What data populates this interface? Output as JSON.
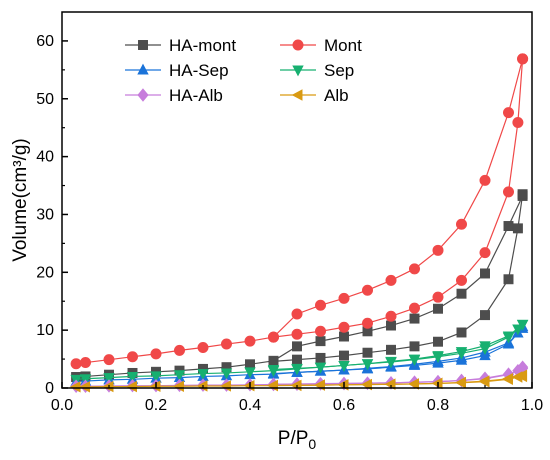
{
  "chart_data": {
    "type": "scatter",
    "xlim": [
      0,
      1.0
    ],
    "ylim": [
      0,
      65
    ],
    "x_ticks": [
      "0.0",
      "0.2",
      "0.4",
      "0.6",
      "0.8",
      "1.0"
    ],
    "y_ticks": [
      "0",
      "10",
      "20",
      "30",
      "40",
      "50",
      "60"
    ],
    "xlabel_main": "P/P",
    "xlabel_sub": "0",
    "ylabel": "Volume(cm³/g)",
    "legend_position": "top-left",
    "grid": false,
    "series": [
      {
        "name": "HA-mont",
        "color": "#4d4d4d",
        "marker": "square",
        "adsorption": [
          [
            0.03,
            1.9
          ],
          [
            0.05,
            2.0
          ],
          [
            0.1,
            2.3
          ],
          [
            0.15,
            2.6
          ],
          [
            0.2,
            2.8
          ],
          [
            0.25,
            3.0
          ],
          [
            0.3,
            3.3
          ],
          [
            0.35,
            3.6
          ],
          [
            0.4,
            4.1
          ],
          [
            0.45,
            4.7
          ],
          [
            0.5,
            7.2
          ],
          [
            0.55,
            8.1
          ],
          [
            0.6,
            8.9
          ],
          [
            0.65,
            9.8
          ],
          [
            0.7,
            10.8
          ],
          [
            0.75,
            12.0
          ],
          [
            0.8,
            13.7
          ],
          [
            0.85,
            16.3
          ],
          [
            0.9,
            19.8
          ],
          [
            0.95,
            28.0
          ],
          [
            0.98,
            33.2
          ]
        ],
        "desorption": [
          [
            0.98,
            33.5
          ],
          [
            0.97,
            27.6
          ],
          [
            0.95,
            18.8
          ],
          [
            0.9,
            12.6
          ],
          [
            0.85,
            9.6
          ],
          [
            0.8,
            8.0
          ],
          [
            0.75,
            7.2
          ],
          [
            0.7,
            6.6
          ],
          [
            0.65,
            6.1
          ],
          [
            0.6,
            5.6
          ],
          [
            0.55,
            5.2
          ],
          [
            0.5,
            4.9
          ],
          [
            0.45,
            4.6
          ]
        ]
      },
      {
        "name": "Mont",
        "color": "#f04848",
        "marker": "circle",
        "adsorption": [
          [
            0.03,
            4.2
          ],
          [
            0.05,
            4.4
          ],
          [
            0.1,
            4.9
          ],
          [
            0.15,
            5.4
          ],
          [
            0.2,
            5.9
          ],
          [
            0.25,
            6.5
          ],
          [
            0.3,
            7.0
          ],
          [
            0.35,
            7.6
          ],
          [
            0.4,
            8.1
          ],
          [
            0.45,
            8.8
          ],
          [
            0.5,
            12.8
          ],
          [
            0.55,
            14.3
          ],
          [
            0.6,
            15.5
          ],
          [
            0.65,
            16.9
          ],
          [
            0.7,
            18.6
          ],
          [
            0.75,
            20.6
          ],
          [
            0.8,
            23.8
          ],
          [
            0.85,
            28.3
          ],
          [
            0.9,
            35.9
          ],
          [
            0.95,
            47.6
          ],
          [
            0.98,
            56.9
          ]
        ],
        "desorption": [
          [
            0.98,
            56.9
          ],
          [
            0.97,
            45.9
          ],
          [
            0.95,
            33.9
          ],
          [
            0.9,
            23.4
          ],
          [
            0.85,
            18.6
          ],
          [
            0.8,
            15.7
          ],
          [
            0.75,
            13.8
          ],
          [
            0.7,
            12.4
          ],
          [
            0.65,
            11.2
          ],
          [
            0.6,
            10.5
          ],
          [
            0.55,
            9.8
          ],
          [
            0.5,
            9.3
          ],
          [
            0.45,
            8.8
          ]
        ]
      },
      {
        "name": "HA-Sep",
        "color": "#1a73d9",
        "marker": "triangle-up",
        "adsorption": [
          [
            0.03,
            1.1
          ],
          [
            0.05,
            1.2
          ],
          [
            0.1,
            1.4
          ],
          [
            0.15,
            1.5
          ],
          [
            0.2,
            1.7
          ],
          [
            0.25,
            1.8
          ],
          [
            0.3,
            2.0
          ],
          [
            0.35,
            2.1
          ],
          [
            0.4,
            2.3
          ],
          [
            0.45,
            2.4
          ],
          [
            0.5,
            2.7
          ],
          [
            0.55,
            2.9
          ],
          [
            0.6,
            3.1
          ],
          [
            0.65,
            3.4
          ],
          [
            0.7,
            3.7
          ],
          [
            0.75,
            4.1
          ],
          [
            0.8,
            4.6
          ],
          [
            0.85,
            5.2
          ],
          [
            0.9,
            6.2
          ],
          [
            0.95,
            7.8
          ],
          [
            0.98,
            10.3
          ]
        ],
        "desorption": [
          [
            0.98,
            10.6
          ],
          [
            0.97,
            9.5
          ],
          [
            0.95,
            7.6
          ],
          [
            0.9,
            5.6
          ],
          [
            0.85,
            4.8
          ],
          [
            0.8,
            4.3
          ],
          [
            0.75,
            3.9
          ],
          [
            0.7,
            3.6
          ],
          [
            0.65,
            3.3
          ],
          [
            0.6,
            3.1
          ],
          [
            0.55,
            2.9
          ],
          [
            0.5,
            2.7
          ],
          [
            0.45,
            2.5
          ]
        ]
      },
      {
        "name": "Sep",
        "color": "#17b070",
        "marker": "triangle-down",
        "adsorption": [
          [
            0.03,
            1.5
          ],
          [
            0.05,
            1.6
          ],
          [
            0.1,
            1.8
          ],
          [
            0.15,
            2.0
          ],
          [
            0.2,
            2.1
          ],
          [
            0.25,
            2.3
          ],
          [
            0.3,
            2.5
          ],
          [
            0.35,
            2.6
          ],
          [
            0.4,
            2.8
          ],
          [
            0.45,
            3.0
          ],
          [
            0.5,
            3.3
          ],
          [
            0.55,
            3.6
          ],
          [
            0.6,
            3.9
          ],
          [
            0.65,
            4.2
          ],
          [
            0.7,
            4.6
          ],
          [
            0.75,
            5.0
          ],
          [
            0.8,
            5.6
          ],
          [
            0.85,
            6.3
          ],
          [
            0.9,
            7.3
          ],
          [
            0.95,
            9.0
          ],
          [
            0.98,
            11.0
          ]
        ],
        "desorption": [
          [
            0.98,
            11.0
          ],
          [
            0.97,
            10.2
          ],
          [
            0.95,
            8.8
          ],
          [
            0.9,
            6.8
          ],
          [
            0.85,
            6.0
          ],
          [
            0.8,
            5.4
          ],
          [
            0.75,
            4.9
          ],
          [
            0.7,
            4.5
          ],
          [
            0.65,
            4.2
          ],
          [
            0.6,
            3.9
          ],
          [
            0.55,
            3.6
          ],
          [
            0.5,
            3.4
          ],
          [
            0.45,
            3.2
          ]
        ]
      },
      {
        "name": "HA-Alb",
        "color": "#c77ddc",
        "marker": "diamond",
        "adsorption": [
          [
            0.03,
            0.3
          ],
          [
            0.05,
            0.3
          ],
          [
            0.1,
            0.35
          ],
          [
            0.15,
            0.4
          ],
          [
            0.2,
            0.4
          ],
          [
            0.25,
            0.45
          ],
          [
            0.3,
            0.5
          ],
          [
            0.35,
            0.5
          ],
          [
            0.4,
            0.55
          ],
          [
            0.45,
            0.6
          ],
          [
            0.5,
            0.65
          ],
          [
            0.55,
            0.7
          ],
          [
            0.6,
            0.75
          ],
          [
            0.65,
            0.8
          ],
          [
            0.7,
            0.9
          ],
          [
            0.75,
            1.0
          ],
          [
            0.8,
            1.1
          ],
          [
            0.85,
            1.3
          ],
          [
            0.9,
            1.6
          ],
          [
            0.95,
            2.3
          ],
          [
            0.98,
            3.4
          ]
        ],
        "desorption": [
          [
            0.98,
            3.6
          ],
          [
            0.97,
            3.0
          ],
          [
            0.95,
            2.4
          ],
          [
            0.9,
            1.7
          ],
          [
            0.85,
            1.3
          ],
          [
            0.8,
            1.1
          ],
          [
            0.75,
            1.0
          ],
          [
            0.7,
            0.9
          ],
          [
            0.65,
            0.85
          ],
          [
            0.6,
            0.8
          ],
          [
            0.55,
            0.75
          ],
          [
            0.5,
            0.7
          ],
          [
            0.45,
            0.65
          ]
        ]
      },
      {
        "name": "Alb",
        "color": "#d99a12",
        "marker": "triangle-left",
        "adsorption": [
          [
            0.03,
            0.2
          ],
          [
            0.05,
            0.2
          ],
          [
            0.1,
            0.25
          ],
          [
            0.15,
            0.25
          ],
          [
            0.2,
            0.3
          ],
          [
            0.25,
            0.3
          ],
          [
            0.3,
            0.35
          ],
          [
            0.35,
            0.35
          ],
          [
            0.4,
            0.4
          ],
          [
            0.45,
            0.4
          ],
          [
            0.5,
            0.45
          ],
          [
            0.55,
            0.5
          ],
          [
            0.6,
            0.55
          ],
          [
            0.65,
            0.6
          ],
          [
            0.7,
            0.65
          ],
          [
            0.75,
            0.7
          ],
          [
            0.8,
            0.8
          ],
          [
            0.85,
            0.95
          ],
          [
            0.9,
            1.2
          ],
          [
            0.95,
            1.6
          ],
          [
            0.98,
            2.0
          ]
        ],
        "desorption": [
          [
            0.98,
            2.2
          ],
          [
            0.97,
            1.9
          ],
          [
            0.95,
            1.5
          ],
          [
            0.9,
            1.1
          ],
          [
            0.85,
            0.9
          ],
          [
            0.8,
            0.8
          ],
          [
            0.75,
            0.7
          ],
          [
            0.7,
            0.65
          ],
          [
            0.65,
            0.6
          ],
          [
            0.6,
            0.55
          ],
          [
            0.55,
            0.5
          ],
          [
            0.5,
            0.45
          ],
          [
            0.45,
            0.45
          ]
        ]
      }
    ]
  }
}
